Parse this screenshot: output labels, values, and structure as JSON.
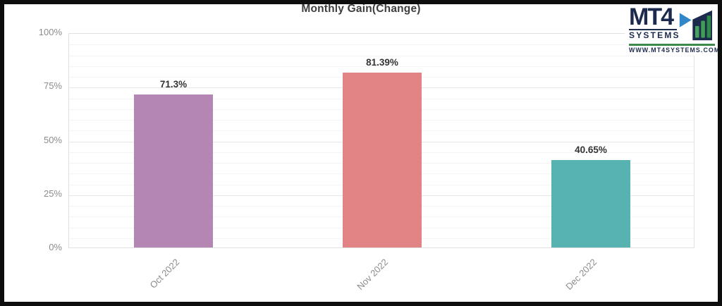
{
  "logo": {
    "brand": "MT4",
    "brand_sub": "SYSTEMS",
    "url": "WWW.MT4SYSTEMS.COM"
  },
  "chart_data": {
    "type": "bar",
    "title": "Monthly Gain(Change)",
    "categories": [
      "Oct 2022",
      "Nov 2022",
      "Dec 2022"
    ],
    "values": [
      71.3,
      81.39,
      40.65
    ],
    "value_labels": [
      "71.3%",
      "81.39%",
      "40.65%"
    ],
    "bar_colors": [
      "#b386b4",
      "#e28485",
      "#57b2b2"
    ],
    "xlabel": "",
    "ylabel": "",
    "ylim": [
      0,
      100
    ],
    "y_ticks": [
      0,
      25,
      50,
      75,
      100
    ],
    "y_tick_labels": [
      "0%",
      "25%",
      "50%",
      "75%",
      "100%"
    ],
    "minor_grid_step": 5,
    "grid": true,
    "legend": false,
    "x_label_rotation_deg": -45
  },
  "colors": {
    "frame": "#0e0e0e",
    "background": "#ffffff",
    "title_text": "#3e3e3e",
    "axis_text": "#8c8c8c",
    "value_label_text": "#333333",
    "major_grid": "#e7e7e7",
    "minor_grid": "#f4f4f4",
    "plot_border": "#e1e1e1",
    "logo_navy": "#1c2b4d",
    "logo_green": "#3d8b4a",
    "logo_blue": "#2f86c8"
  }
}
